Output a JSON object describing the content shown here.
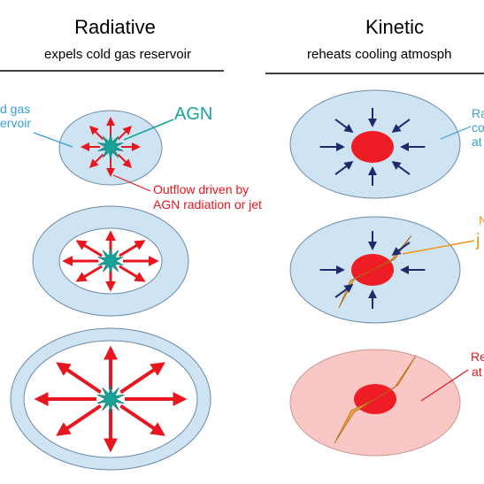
{
  "left_panel": {
    "title": "Radiative",
    "subtitle": "expels cold gas reservoir",
    "labels": {
      "gas_line1": "d gas",
      "gas_line2": "ervoir",
      "agn": "AGN",
      "outflow_line1": "Outflow driven by",
      "outflow_line2": "AGN radiation or jet"
    }
  },
  "right_panel": {
    "title": "Kinetic",
    "subtitle": "reheats cooling atmosph",
    "labels": {
      "atm_line1": "Ra",
      "atm_line2": "co",
      "atm_line3": "at",
      "jet_line1": "N",
      "jet_line2": "j",
      "heated_line1": "Re",
      "heated_line2": "at"
    }
  },
  "colors": {
    "reservoir_blue": "#cfe4f3",
    "outline": "#6b8aa8",
    "cavity_white": "#ffffff",
    "agn_teal": "#17a398",
    "outflow_red": "#e8161e",
    "core_red": "#ee1c24",
    "arrow_navy": "#1d2a6b",
    "jet_orange": "#f6a03c",
    "heated_pink": "#f9c8c4",
    "label_blue": "#3a9fd8",
    "label_orange": "#f7941d",
    "label_red": "#e8161e"
  },
  "icons": [
    "agn-star-icon",
    "outflow-arrow-icon",
    "inflow-arrow-icon",
    "jet-icon"
  ]
}
